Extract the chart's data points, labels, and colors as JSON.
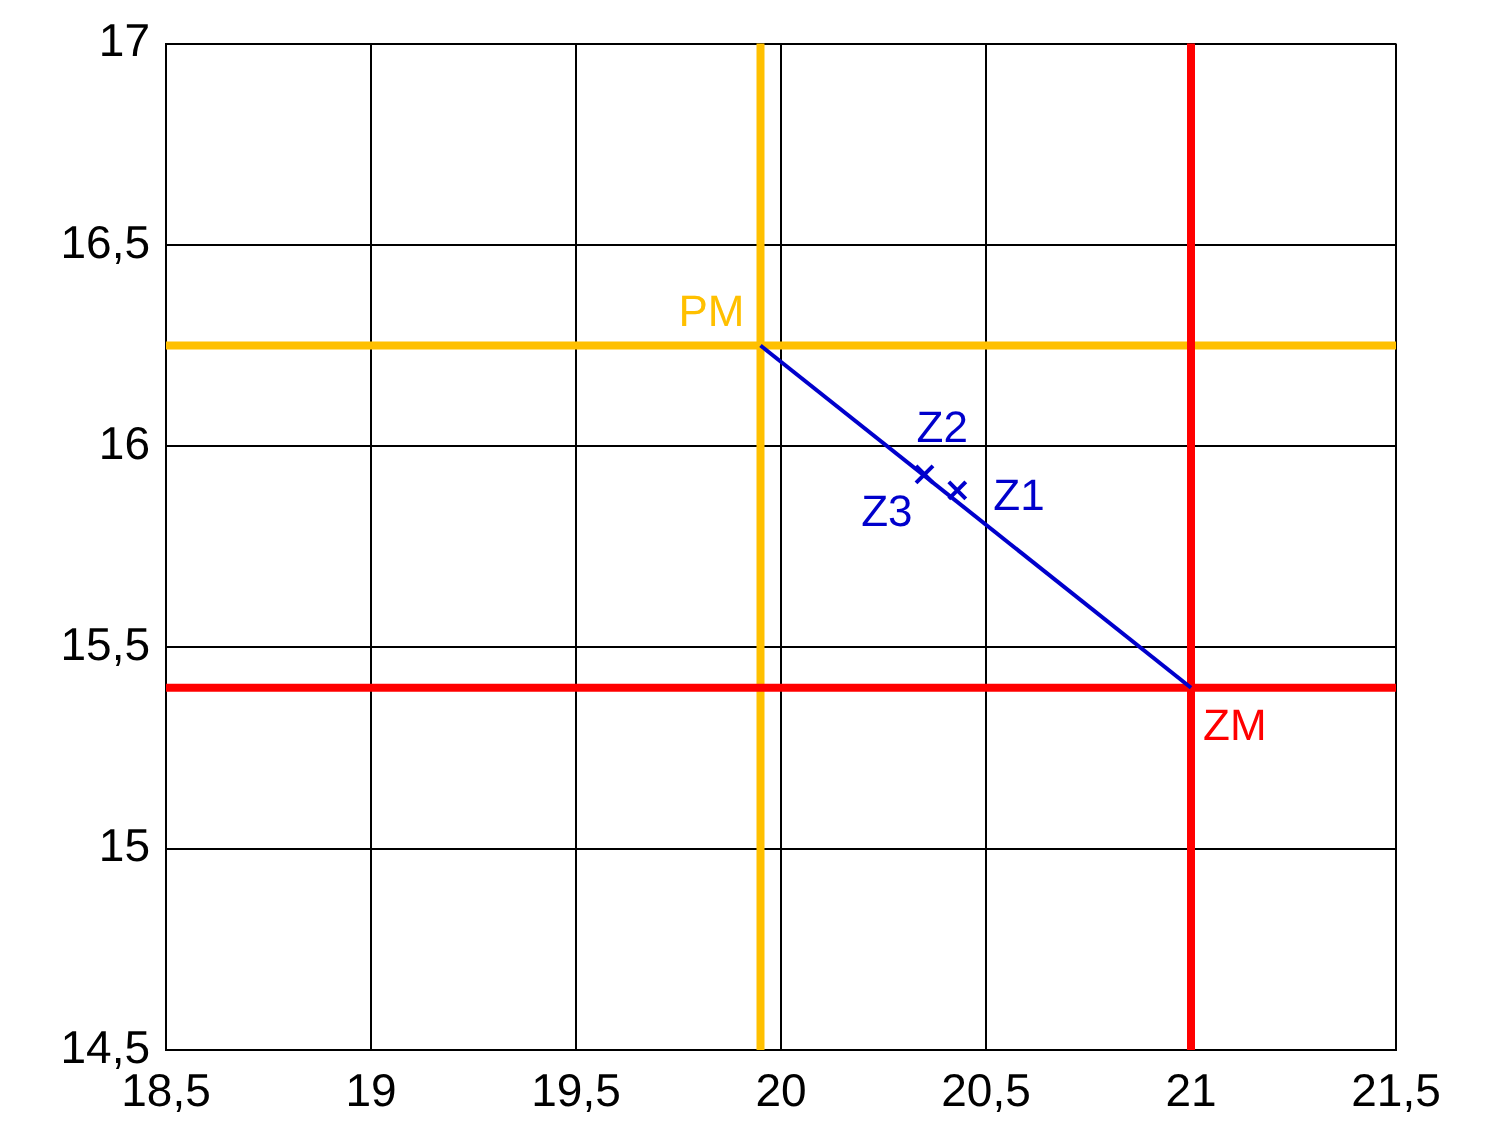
{
  "chart_data": {
    "type": "line",
    "series": [
      {
        "color": "#0000cc",
        "x": [
          19.95,
          21
        ],
        "values": [
          16.25,
          15.4
        ]
      },
      {
        "type": "scatter",
        "color": "#0000cc",
        "x": [
          20.43,
          20.35
        ],
        "values": [
          15.89,
          15.93
        ],
        "marker": "cross"
      }
    ],
    "xlim": [
      18.5,
      21.5
    ],
    "ylim": [
      14.5,
      17
    ],
    "xticks": [
      {
        "value": 18.5,
        "label": "18,5"
      },
      19,
      {
        "value": 19.5,
        "label": "19,5"
      },
      20,
      {
        "value": 20.5,
        "label": "20,5"
      },
      21,
      {
        "value": 21.5,
        "label": "21,5"
      }
    ],
    "yticks": [
      {
        "value": 14.5,
        "label": "14,5"
      },
      15,
      {
        "value": 15.5,
        "label": "15,5"
      },
      16,
      {
        "value": 16.5,
        "label": "16,5"
      },
      17
    ],
    "grid": true,
    "legend": false,
    "marker": "none",
    "line_style": "solid",
    "ref_lines": [
      {
        "axis": "x",
        "value": 19.95,
        "label": null,
        "color": "#ffc000"
      },
      {
        "axis": "y",
        "value": 16.25,
        "label": null,
        "color": "#ffc000"
      },
      {
        "axis": "x",
        "value": 21,
        "label": null,
        "color": "#ff0000"
      },
      {
        "axis": "y",
        "value": 15.4,
        "label": null,
        "color": "#ff0000"
      }
    ],
    "annotations": [
      {
        "text": "PM",
        "x": 19.95,
        "y": 16.25
      },
      {
        "text": "ZM",
        "x": 21,
        "y": 15.4
      },
      {
        "text": "Z1",
        "x": 20.43,
        "y": 15.89
      },
      {
        "text": "Z2",
        "x": 20.35,
        "y": 15.93
      },
      {
        "text": "Z3",
        "x": 20.35,
        "y": 15.93
      }
    ]
  }
}
